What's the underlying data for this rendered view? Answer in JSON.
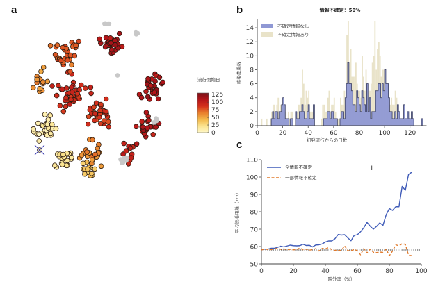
{
  "chart_data": [
    {
      "panel": "a",
      "type": "scatter",
      "title": "",
      "colorbar": {
        "label": "流行開始日",
        "ticks": [
          0,
          25,
          50,
          75,
          100,
          125
        ],
        "range": [
          0,
          130
        ],
        "colormap": [
          "#fff8c8",
          "#fbe38e",
          "#f3b84a",
          "#e97e2c",
          "#d4301c",
          "#b4151a",
          "#7a1016"
        ]
      },
      "missing_color": "#c8c8c8",
      "marker_note": "blue X marks the index farm",
      "clusters": [
        {
          "cx": 0.55,
          "cy": 0.12,
          "value": 110,
          "n": 30,
          "spread": 0.1
        },
        {
          "cx": 0.82,
          "cy": 0.38,
          "value": 112,
          "n": 28,
          "spread": 0.11
        },
        {
          "cx": 0.78,
          "cy": 0.62,
          "value": 105,
          "n": 24,
          "spread": 0.1
        },
        {
          "cx": 0.32,
          "cy": 0.42,
          "value": 92,
          "n": 40,
          "spread": 0.15
        },
        {
          "cx": 0.28,
          "cy": 0.18,
          "value": 75,
          "n": 30,
          "spread": 0.14
        },
        {
          "cx": 0.1,
          "cy": 0.35,
          "value": 55,
          "n": 14,
          "spread": 0.1
        },
        {
          "cx": 0.5,
          "cy": 0.55,
          "value": 85,
          "n": 30,
          "spread": 0.13
        },
        {
          "cx": 0.45,
          "cy": 0.78,
          "value": 60,
          "n": 22,
          "spread": 0.12
        },
        {
          "cx": 0.15,
          "cy": 0.62,
          "value": 12,
          "n": 28,
          "spread": 0.11
        },
        {
          "cx": 0.25,
          "cy": 0.82,
          "value": 18,
          "n": 22,
          "spread": 0.09
        },
        {
          "cx": 0.4,
          "cy": 0.88,
          "value": 35,
          "n": 14,
          "spread": 0.07
        },
        {
          "cx": 0.67,
          "cy": 0.78,
          "value": 95,
          "n": 12,
          "spread": 0.1
        }
      ],
      "missing_clusters": [
        {
          "cx": 0.52,
          "cy": 0.0,
          "n": 4
        },
        {
          "cx": 0.72,
          "cy": 0.06,
          "n": 3
        },
        {
          "cx": 0.63,
          "cy": 0.83,
          "n": 9
        },
        {
          "cx": 0.84,
          "cy": 0.58,
          "n": 4
        },
        {
          "cx": 0.6,
          "cy": 0.31,
          "n": 1
        }
      ]
    },
    {
      "panel": "b",
      "type": "bar",
      "title": "情報不確定：50%",
      "xlabel": "初発流行からの日数",
      "ylabel": "感染農場数",
      "xlim": [
        0,
        130
      ],
      "ylim": [
        0,
        15
      ],
      "xticks": [
        0,
        20,
        40,
        60,
        80,
        100,
        120
      ],
      "yticks": [
        0,
        2,
        4,
        6,
        8,
        10,
        12,
        14
      ],
      "series": [
        {
          "name": "不確定情報なし",
          "color": "#8f98d4",
          "x": [
            11,
            12,
            13,
            14,
            15,
            16,
            17,
            18,
            19,
            20,
            21,
            22,
            23,
            24,
            25,
            26,
            27,
            30,
            31,
            32,
            33,
            34,
            35,
            36,
            37,
            38,
            39,
            40,
            41,
            42,
            43,
            44,
            52,
            53,
            54,
            55,
            56,
            57,
            58,
            59,
            60,
            61,
            62,
            65,
            66,
            67,
            68,
            69,
            70,
            71,
            72,
            73,
            74,
            75,
            76,
            77,
            78,
            79,
            80,
            81,
            82,
            83,
            84,
            85,
            86,
            87,
            88,
            89,
            90,
            91,
            92,
            93,
            94,
            95,
            96,
            97,
            98,
            99,
            100,
            101,
            102,
            103,
            104,
            105,
            106,
            107,
            108,
            109,
            110,
            111,
            112,
            113,
            114,
            115,
            116,
            117,
            118,
            119,
            120,
            121,
            122,
            129
          ],
          "values": [
            1,
            2,
            1,
            2,
            2,
            1,
            2,
            2,
            3,
            4,
            3,
            1,
            1,
            1,
            0,
            1,
            1,
            2,
            1,
            1,
            2,
            2,
            3,
            2,
            1,
            1,
            2,
            3,
            1,
            1,
            1,
            3,
            1,
            1,
            1,
            2,
            2,
            1,
            2,
            2,
            1,
            1,
            1,
            1,
            2,
            2,
            1,
            4,
            6,
            9,
            6,
            6,
            5,
            3,
            3,
            2,
            5,
            4,
            3,
            2,
            5,
            4,
            3,
            2,
            6,
            2,
            4,
            1,
            2,
            2,
            2,
            5,
            5,
            6,
            6,
            4,
            6,
            5,
            8,
            6,
            6,
            4,
            2,
            2,
            1,
            1,
            2,
            1,
            3,
            2,
            1,
            1,
            1,
            3,
            1,
            1,
            2,
            1,
            1,
            2,
            1,
            1
          ]
        },
        {
          "name": "不確定情報あり",
          "color": "#e9e3c9",
          "x": [
            3,
            7,
            10,
            11,
            12,
            13,
            14,
            15,
            16,
            17,
            18,
            19,
            20,
            21,
            22,
            23,
            24,
            25,
            26,
            27,
            30,
            31,
            32,
            33,
            34,
            35,
            36,
            37,
            38,
            39,
            40,
            41,
            42,
            43,
            44,
            50,
            51,
            52,
            53,
            54,
            55,
            56,
            57,
            58,
            59,
            60,
            61,
            62,
            63,
            64,
            65,
            66,
            67,
            68,
            69,
            70,
            71,
            72,
            73,
            74,
            75,
            76,
            77,
            78,
            79,
            80,
            81,
            82,
            83,
            84,
            85,
            86,
            87,
            88,
            89,
            90,
            91,
            92,
            93,
            94,
            95,
            96,
            97,
            98,
            99,
            100,
            101,
            102,
            103,
            104,
            105,
            106,
            107,
            108,
            109,
            110,
            111,
            112,
            113,
            114,
            115,
            116,
            117,
            118,
            119,
            120,
            121,
            122
          ],
          "values": [
            1,
            1,
            1,
            2,
            3,
            3,
            2,
            3,
            4,
            2,
            3,
            3,
            4,
            3,
            2,
            1,
            2,
            1,
            2,
            2,
            2,
            2,
            3,
            3,
            4,
            8,
            6,
            3,
            5,
            4,
            5,
            2,
            2,
            2,
            3,
            1,
            3,
            3,
            2,
            2,
            4,
            5,
            2,
            3,
            3,
            4,
            2,
            1,
            1,
            1,
            4,
            3,
            3,
            5,
            3,
            13,
            15,
            9,
            11,
            7,
            7,
            7,
            9,
            6,
            5,
            5,
            4,
            10,
            7,
            5,
            8,
            5,
            4,
            5,
            6,
            9,
            10,
            15,
            8,
            11,
            12,
            10,
            7,
            8,
            8,
            4,
            3,
            4,
            2,
            3,
            4,
            3,
            3,
            5,
            4,
            3,
            2,
            1,
            1,
            1,
            1,
            1,
            1,
            1,
            1,
            1,
            1,
            1
          ]
        }
      ],
      "legend": "top-left"
    },
    {
      "panel": "c",
      "type": "line",
      "title": "",
      "xlabel": "除外率（%）",
      "ylabel": "平均伝播距離（km）",
      "xlim": [
        0,
        100
      ],
      "ylim": [
        50,
        110
      ],
      "xticks": [
        0,
        20,
        40,
        60,
        80,
        100
      ],
      "yticks": [
        50,
        60,
        70,
        80,
        90,
        100,
        110
      ],
      "reference_line": {
        "y": 58,
        "style": "dotted",
        "color": "#333333"
      },
      "annotation": {
        "text": "I",
        "x": 69,
        "y": 104
      },
      "series": [
        {
          "name": "全情報不確定",
          "color": "#3f5bb8",
          "style": "solid",
          "x": [
            0,
            2,
            4,
            6,
            8,
            10,
            12,
            14,
            16,
            18,
            20,
            22,
            24,
            26,
            28,
            30,
            32,
            34,
            36,
            38,
            40,
            42,
            44,
            46,
            48,
            50,
            52,
            54,
            56,
            58,
            60,
            62,
            64,
            66,
            68,
            70,
            72,
            74,
            76,
            78,
            80,
            82,
            84,
            86,
            88,
            90,
            92,
            94
          ],
          "values": [
            58,
            58.5,
            58.5,
            59,
            59,
            59.5,
            60.2,
            59.8,
            60.3,
            60.8,
            60.5,
            60.4,
            60.5,
            61.3,
            60.6,
            60.7,
            59.8,
            60.9,
            61,
            61.5,
            62.6,
            63.2,
            63.2,
            64.5,
            66.9,
            66.6,
            66.8,
            65,
            63.3,
            66.4,
            66.8,
            68.5,
            70.8,
            73.9,
            71.7,
            70,
            71.6,
            73.6,
            72.2,
            78.3,
            81.8,
            80.8,
            82.9,
            82.9,
            94.6,
            92.4,
            101.5,
            102.8
          ]
        },
        {
          "name": "一部情報不確定",
          "color": "#e07a2c",
          "style": "dashed",
          "x": [
            0,
            2,
            4,
            6,
            8,
            10,
            12,
            14,
            16,
            18,
            20,
            22,
            24,
            26,
            28,
            30,
            32,
            34,
            36,
            38,
            40,
            42,
            44,
            46,
            48,
            50,
            52,
            54,
            56,
            58,
            60,
            62,
            64,
            66,
            68,
            70,
            72,
            74,
            76,
            78,
            80,
            82,
            84,
            86,
            88,
            90,
            92,
            94
          ],
          "values": [
            58,
            58.5,
            58.3,
            58.2,
            58.6,
            59,
            58.4,
            58.7,
            58.1,
            58.4,
            58.1,
            58.3,
            59.1,
            58.2,
            58.5,
            57.9,
            58.2,
            58.8,
            57.4,
            58.9,
            58.6,
            59.4,
            58.2,
            57.8,
            57.7,
            57.8,
            60.4,
            57.6,
            57.6,
            58.3,
            57.6,
            55.2,
            58.8,
            56.3,
            58.5,
            56.7,
            56.5,
            56.8,
            56.6,
            58.5,
            54.7,
            57.4,
            61,
            60.4,
            61.6,
            61.3,
            55,
            54.7
          ]
        }
      ],
      "legend": "top-left"
    }
  ],
  "panels": {
    "a": {
      "letter": "a"
    },
    "b": {
      "letter": "b"
    },
    "c": {
      "letter": "c"
    }
  }
}
